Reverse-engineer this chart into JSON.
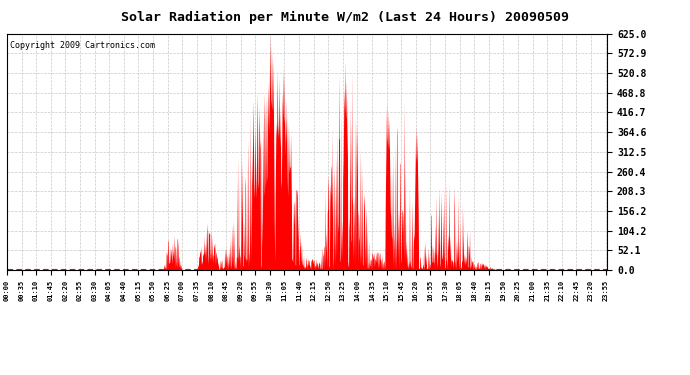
{
  "title": "Solar Radiation per Minute W/m2 (Last 24 Hours) 20090509",
  "copyright": "Copyright 2009 Cartronics.com",
  "ylabel_values": [
    0.0,
    52.1,
    104.2,
    156.2,
    208.3,
    260.4,
    312.5,
    364.6,
    416.7,
    468.8,
    520.8,
    572.9,
    625.0
  ],
  "ymax": 625.0,
  "ymin": 0.0,
  "fill_color": "#FF0000",
  "line_color": "#FF0000",
  "dashed_line_color": "#FF0000",
  "background_color": "#FFFFFF",
  "grid_color": "#BBBBBB",
  "title_fontsize": 10,
  "copyright_fontsize": 6.5
}
